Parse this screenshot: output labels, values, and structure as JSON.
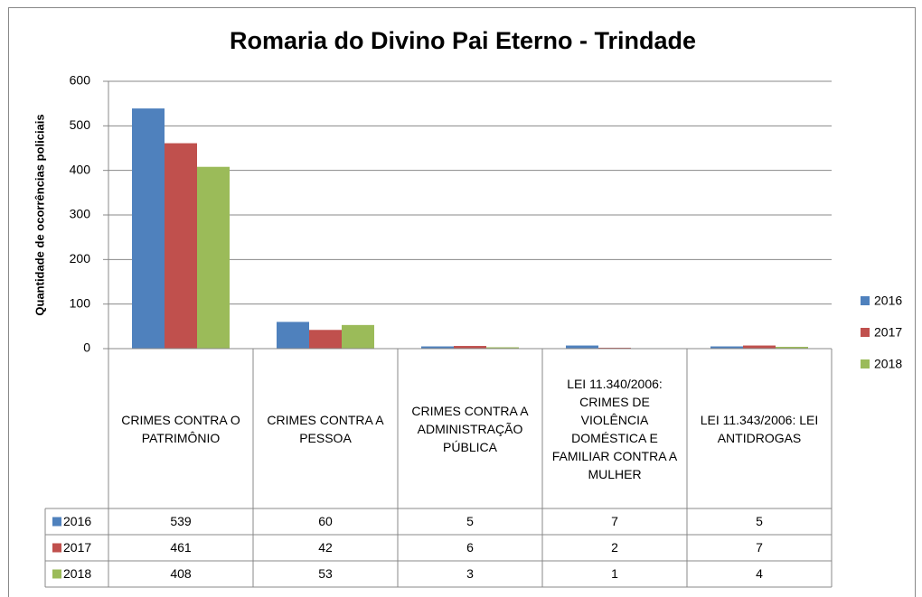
{
  "chart_data": {
    "type": "bar",
    "title": "Romaria do Divino Pai Eterno - Trindade",
    "y_label": "Quantidade de ocorrências policiais",
    "categories": [
      "CRIMES CONTRA O PATRIMÔNIO",
      "CRIMES CONTRA A PESSOA",
      "CRIMES CONTRA A ADMINISTRAÇÃO PÚBLICA",
      "LEI 11.340/2006: CRIMES DE VIOLÊNCIA DOMÉSTICA E FAMILIAR CONTRA A MULHER",
      "LEI 11.343/2006: LEI ANTIDROGAS"
    ],
    "series": [
      {
        "name": "2016",
        "color": "#4f81bd",
        "values": [
          539,
          60,
          5,
          7,
          5
        ]
      },
      {
        "name": "2017",
        "color": "#c0504d",
        "values": [
          461,
          42,
          6,
          2,
          7
        ]
      },
      {
        "name": "2018",
        "color": "#9bbb59",
        "values": [
          408,
          53,
          3,
          1,
          4
        ]
      }
    ],
    "ylim": [
      0,
      600
    ],
    "yticks": [
      0,
      100,
      200,
      300,
      400,
      500,
      600
    ],
    "grid": true,
    "legend": "right",
    "data_table": true
  }
}
